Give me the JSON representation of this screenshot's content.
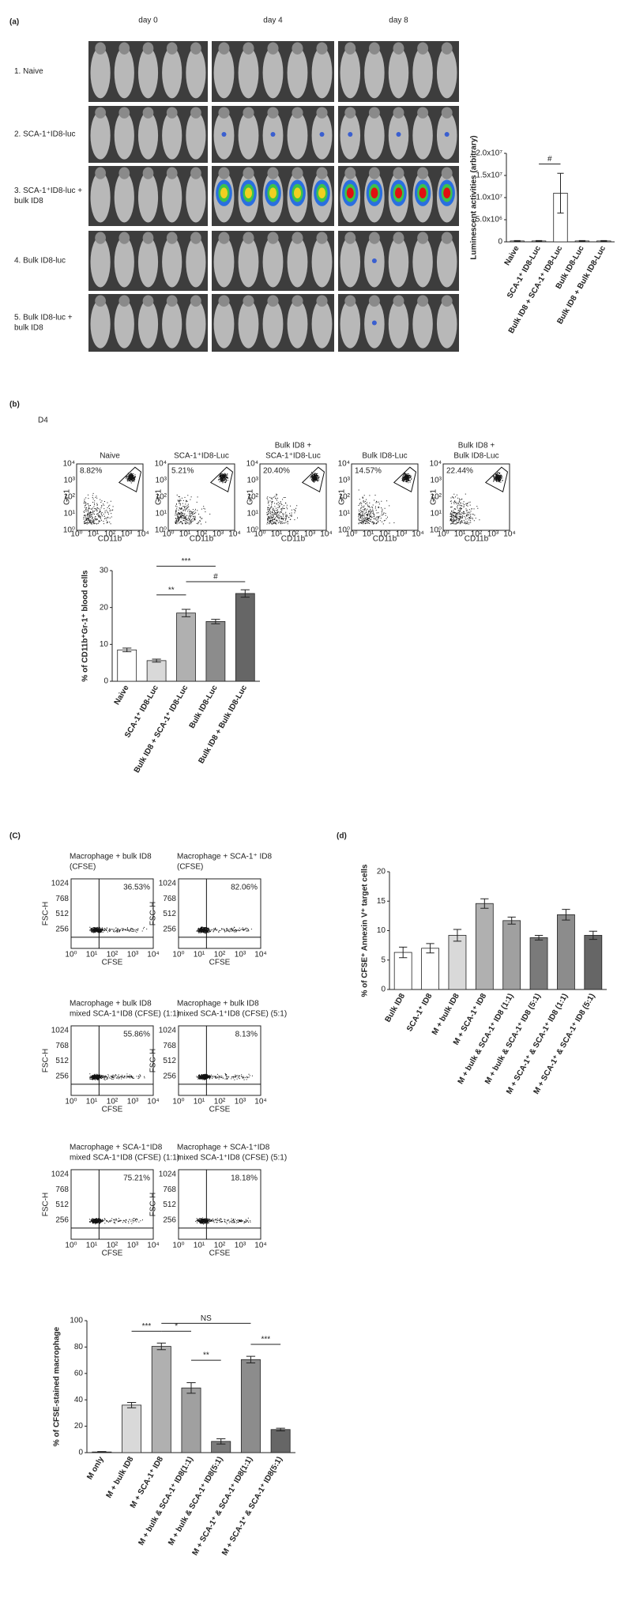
{
  "panel_labels": [
    "(a)",
    "(b)",
    "(C)",
    "(d)"
  ],
  "panel_a": {
    "days": [
      "day 0",
      "day 4",
      "day 8"
    ],
    "rows": [
      [
        "1. Naive"
      ],
      [
        "2. SCA-1⁺ID8-luc"
      ],
      [
        "3. SCA-1⁺ID8-luc +",
        "bulk ID8"
      ],
      [
        "4. Bulk ID8-luc"
      ],
      [
        "5. Bulk ID8-luc +",
        "bulk ID8"
      ]
    ]
  },
  "panel_b": {
    "day": "D4",
    "y_label": "Gr-1",
    "x_label": "CD11b",
    "ticks": [
      "10⁰",
      "10¹",
      "10²",
      "10³",
      "10⁴"
    ],
    "plots": [
      {
        "title": [
          "Naive"
        ],
        "percent": "8.82%"
      },
      {
        "title": [
          "SCA-1⁺ID8-Luc"
        ],
        "percent": "5.21%"
      },
      {
        "title": [
          "Bulk ID8 +",
          "SCA-1⁺ID8-Luc"
        ],
        "percent": "20.40%"
      },
      {
        "title": [
          "Bulk ID8-Luc"
        ],
        "percent": "14.57%"
      },
      {
        "title": [
          "Bulk ID8 +",
          "Bulk ID8-Luc"
        ],
        "percent": "22.44%"
      }
    ]
  },
  "panel_c": {
    "y_label": "FSC-H",
    "x_label": "CFSE",
    "yticks": [
      "1024",
      "768",
      "512",
      "256"
    ],
    "xticks": [
      "10⁰",
      "10¹",
      "10²",
      "10³",
      "10⁴"
    ],
    "plots": [
      {
        "title": [
          "Macrophage + bulk ID8",
          "(CFSE)"
        ],
        "percent": "36.53%"
      },
      {
        "title": [
          "Macrophage + SCA-1⁺ ID8",
          "(CFSE)"
        ],
        "percent": "82.06%"
      },
      {
        "title": [
          "Macrophage + bulk ID8",
          "mixed SCA-1⁺ID8 (CFSE) (1:1)"
        ],
        "percent": "55.86%"
      },
      {
        "title": [
          "Macrophage + bulk ID8",
          "mixed SCA-1⁺ID8 (CFSE) (5:1)"
        ],
        "percent": "8.13%"
      },
      {
        "title": [
          "Macrophage + SCA-1⁺ID8",
          "mixed SCA-1⁺ID8 (CFSE) (1:1)"
        ],
        "percent": "75.21%"
      },
      {
        "title": [
          "Macrophage + SCA-1⁺ID8",
          "mixed SCA-1⁺ID8 (CFSE) (5:1)"
        ],
        "percent": "18.18%"
      }
    ]
  },
  "chart_data": [
    {
      "type": "bar",
      "y_label": "Luminescent activities (arbitrary)",
      "categories": [
        "Naive",
        "SCA-1⁺ ID8-Luc",
        "Bulk ID8 + SCA-1⁺ ID8-Luc",
        "Bulk ID8-Luc",
        "Bulk ID8 + Bulk ID8-Luc"
      ],
      "values": [
        200000,
        200000,
        11000000,
        200000,
        200000
      ],
      "errors": [
        100000,
        100000,
        4500000,
        100000,
        100000
      ],
      "colors": [
        "#ffffff",
        "#ffffff",
        "#ffffff",
        "#ffffff",
        "#ffffff"
      ],
      "ylim": [
        0,
        20000000
      ],
      "yticks": [
        0,
        {
          "value": 5000000,
          "label": "5.0x10⁶"
        },
        {
          "value": 10000000,
          "label": "1.0x10⁷"
        },
        {
          "value": 15000000,
          "label": "1.5x10⁷"
        },
        {
          "value": 20000000,
          "label": "2.0x10⁷"
        }
      ],
      "annotations": [
        "#"
      ]
    },
    {
      "type": "bar",
      "y_label": "% of CD11b⁺Gr-1⁺ blood cells",
      "categories": [
        "Naive",
        "SCA-1⁺ ID8-Luc",
        "Bulk ID8 + SCA-1⁺ ID8-Luc",
        "Bulk ID8-Luc",
        "Bulk ID8 + Bulk ID8-Luc"
      ],
      "values": [
        8.5,
        5.6,
        18.5,
        16.2,
        23.8
      ],
      "errors": [
        0.5,
        0.4,
        1,
        0.6,
        1
      ],
      "colors": [
        "#ffffff",
        "#d9d9d9",
        "#b0b0b0",
        "#8c8c8c",
        "#666666"
      ],
      "ylim": [
        0,
        30
      ],
      "yticks": [
        0,
        10,
        20,
        30
      ],
      "annotations": [
        "***",
        "#",
        "**"
      ]
    },
    {
      "type": "bar",
      "y_label": "% of CFSE⁺ Annexin V⁺ target cells",
      "categories": [
        "Bulk ID8",
        "SCA-1⁺ ID8",
        "M + bulk ID8",
        "M + SCA-1⁺ ID8",
        "M + bulk & SCA-1⁺ ID8 (1:1)",
        "M + bulk & SCA-1⁺ ID8 (5:1)",
        "M + SCA-1⁺ & SCA-1⁺ ID8 (1:1)",
        "M + SCA-1⁺ & SCA-1⁺ ID8 (5:1)"
      ],
      "values": [
        6.3,
        7,
        9.2,
        14.6,
        11.7,
        8.8,
        12.7,
        9.2
      ],
      "errors": [
        0.9,
        0.8,
        1,
        0.8,
        0.6,
        0.4,
        0.9,
        0.7
      ],
      "colors": [
        "#ffffff",
        "#ffffff",
        "#d9d9d9",
        "#b0b0b0",
        "#a0a0a0",
        "#7a7a7a",
        "#8c8c8c",
        "#666666"
      ],
      "ylim": [
        0,
        20
      ],
      "yticks": [
        0,
        5,
        10,
        15,
        20
      ],
      "annotations": []
    },
    {
      "type": "bar",
      "y_label": "% of CFSE-stained macrophage",
      "categories": [
        "M only",
        "M + bulk ID8",
        "M + SCA-1⁺ ID8",
        "M + bulk & SCA-1⁺ ID8(1:1)",
        "M + bulk & SCA-1⁺ ID8(5:1)",
        "M + SCA-1⁺ & SCA-1⁺ ID8(1:1)",
        "M + SCA-1⁺ & SCA-1⁺ ID8(5:1)"
      ],
      "values": [
        0.5,
        36,
        80.5,
        49,
        8.5,
        70.5,
        17.5
      ],
      "errors": [
        0.3,
        2,
        2.5,
        4,
        2,
        2.5,
        1
      ],
      "colors": [
        "#ffffff",
        "#d9d9d9",
        "#b0b0b0",
        "#a0a0a0",
        "#7a7a7a",
        "#8c8c8c",
        "#666666"
      ],
      "ylim": [
        0,
        100
      ],
      "yticks": [
        0,
        20,
        40,
        60,
        80,
        100
      ],
      "annotations": [
        "***",
        "*",
        "NS",
        "**",
        "***"
      ]
    }
  ]
}
